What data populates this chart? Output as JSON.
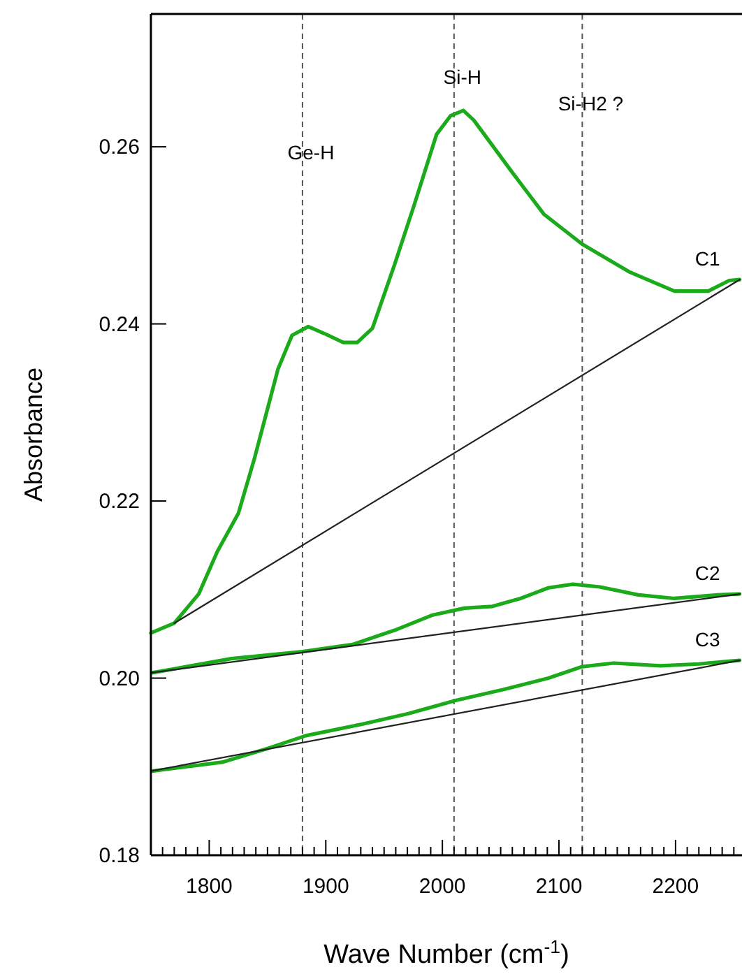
{
  "chart_data": {
    "type": "line",
    "xlabel": "Wave Number (cm$^{-1}$)",
    "ylabel": "Absorbance",
    "xlim": [
      1750,
      2257
    ],
    "ylim": [
      0.18,
      0.275
    ],
    "xticks": [
      {
        "value": 1760,
        "label": null
      },
      {
        "value": 1770,
        "label": null
      },
      {
        "value": 1780,
        "label": null
      },
      {
        "value": 1790,
        "label": null
      },
      1800,
      {
        "value": 1810,
        "label": null
      },
      {
        "value": 1820,
        "label": null
      },
      {
        "value": 1830,
        "label": null
      },
      {
        "value": 1840,
        "label": null
      },
      {
        "value": 1850,
        "label": null
      },
      {
        "value": 1860,
        "label": null
      },
      {
        "value": 1870,
        "label": null
      },
      {
        "value": 1880,
        "label": null
      },
      {
        "value": 1890,
        "label": null
      },
      1900,
      {
        "value": 1910,
        "label": null
      },
      {
        "value": 1920,
        "label": null
      },
      {
        "value": 1930,
        "label": null
      },
      {
        "value": 1940,
        "label": null
      },
      {
        "value": 1950,
        "label": null
      },
      {
        "value": 1960,
        "label": null
      },
      {
        "value": 1970,
        "label": null
      },
      {
        "value": 1980,
        "label": null
      },
      {
        "value": 1990,
        "label": null
      },
      2000,
      {
        "value": 2010,
        "label": null
      },
      {
        "value": 2020,
        "label": null
      },
      {
        "value": 2030,
        "label": null
      },
      {
        "value": 2040,
        "label": null
      },
      {
        "value": 2050,
        "label": null
      },
      {
        "value": 2060,
        "label": null
      },
      {
        "value": 2070,
        "label": null
      },
      {
        "value": 2080,
        "label": null
      },
      {
        "value": 2090,
        "label": null
      },
      2100,
      {
        "value": 2110,
        "label": null
      },
      {
        "value": 2120,
        "label": null
      },
      {
        "value": 2130,
        "label": null
      },
      {
        "value": 2140,
        "label": null
      },
      {
        "value": 2150,
        "label": null
      },
      {
        "value": 2160,
        "label": null
      },
      {
        "value": 2170,
        "label": null
      },
      {
        "value": 2180,
        "label": null
      },
      {
        "value": 2190,
        "label": null
      },
      2200,
      {
        "value": 2210,
        "label": null
      },
      {
        "value": 2220,
        "label": null
      },
      {
        "value": 2230,
        "label": null
      },
      {
        "value": 2240,
        "label": null
      },
      {
        "value": 2250,
        "label": null
      }
    ],
    "yticks": [
      {
        "value": 0.18,
        "label": "0.18"
      },
      {
        "value": 0.2,
        "label": "0.20"
      },
      {
        "value": 0.22,
        "label": "0.22"
      },
      {
        "value": 0.24,
        "label": "0.24"
      },
      {
        "value": 0.26,
        "label": "0.26"
      }
    ],
    "grid": false,
    "marker": "none",
    "line_style": "solid",
    "ref_lines": [
      {
        "axis": "x",
        "value": 1880,
        "label": "Ge-H",
        "color": "#555555",
        "line_style": "dashed"
      },
      {
        "axis": "x",
        "value": 2010,
        "label": "Si-H",
        "color": "#555555",
        "line_style": "dashed"
      },
      {
        "axis": "x",
        "value": 2120,
        "label": "Si-H2 ?",
        "color": "#555555",
        "line_style": "dashed"
      }
    ],
    "series": [
      {
        "name": "C1",
        "color": "#1aaa1a",
        "x": [
          1750,
          1770,
          1791,
          1807,
          1825,
          1839,
          1859,
          1871,
          1885,
          1899,
          1915,
          1927,
          1940,
          1959,
          1976,
          1995,
          2007,
          2018,
          2027,
          2060,
          2087,
          2120,
          2160,
          2199,
          2228,
          2246,
          2255
        ],
        "values": [
          0.2051,
          0.2062,
          0.2095,
          0.2143,
          0.2186,
          0.2249,
          0.2349,
          0.2387,
          0.2397,
          0.2389,
          0.2379,
          0.2379,
          0.2395,
          0.2467,
          0.2535,
          0.2614,
          0.2635,
          0.2641,
          0.263,
          0.2571,
          0.2524,
          0.249,
          0.2459,
          0.2437,
          0.2437,
          0.2449,
          0.245
        ]
      },
      {
        "name": "C2",
        "color": "#1aaa1a",
        "x": [
          1751,
          1819,
          1880,
          1923,
          1959,
          1991,
          2019,
          2043,
          2067,
          2091,
          2112,
          2135,
          2168,
          2199,
          2236,
          2255
        ],
        "values": [
          0.2006,
          0.2022,
          0.203,
          0.2038,
          0.2054,
          0.2071,
          0.2079,
          0.2081,
          0.209,
          0.2102,
          0.2106,
          0.2103,
          0.2094,
          0.209,
          0.2094,
          0.2095
        ]
      },
      {
        "name": "C3",
        "color": "#1aaa1a",
        "x": [
          1751,
          1811,
          1851,
          1883,
          1931,
          1971,
          2012,
          2052,
          2091,
          2120,
          2147,
          2187,
          2220,
          2246,
          2255
        ],
        "values": [
          0.1895,
          0.1905,
          0.1921,
          0.1935,
          0.1948,
          0.196,
          0.1975,
          0.1987,
          0.2,
          0.2013,
          0.2017,
          0.2014,
          0.2016,
          0.2019,
          0.202
        ]
      },
      {
        "color": "#222222",
        "x": [
          1770,
          2255
        ],
        "values": [
          0.2062,
          0.245
        ]
      },
      {
        "color": "#222222",
        "x": [
          1750,
          2255
        ],
        "values": [
          0.2006,
          0.2095
        ]
      },
      {
        "color": "#222222",
        "x": [
          1750,
          2255
        ],
        "values": [
          0.1895,
          0.202
        ]
      }
    ]
  }
}
